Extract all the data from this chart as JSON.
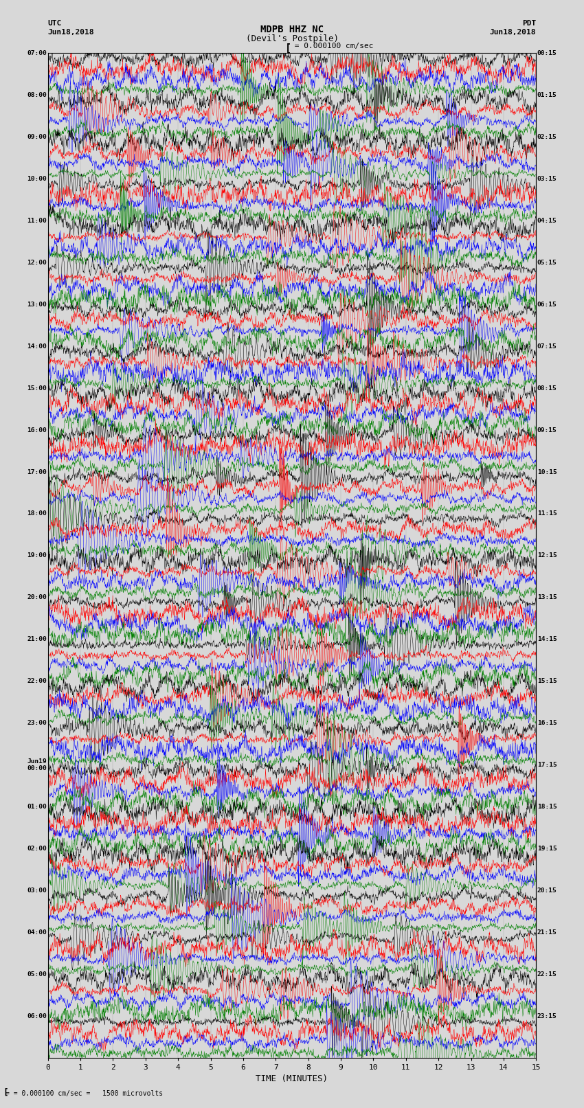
{
  "title_line1": "MDPB HHZ NC",
  "title_line2": "(Devil's Postpile)",
  "scale_label": "= 0.000100 cm/sec",
  "bottom_label": "= 0.000100 cm/sec =   1500 microvolts",
  "xlabel": "TIME (MINUTES)",
  "bg_color": "#d8d8d8",
  "trace_colors": [
    "black",
    "red",
    "blue",
    "green"
  ],
  "left_times_major": [
    "07:00",
    "08:00",
    "09:00",
    "10:00",
    "11:00",
    "12:00",
    "13:00",
    "14:00",
    "15:00",
    "16:00",
    "17:00",
    "18:00",
    "19:00",
    "20:00",
    "21:00",
    "22:00",
    "23:00",
    "00:00",
    "01:00",
    "02:00",
    "03:00",
    "04:00",
    "05:00",
    "06:00"
  ],
  "right_times_major": [
    "00:15",
    "01:15",
    "02:15",
    "03:15",
    "04:15",
    "05:15",
    "06:15",
    "07:15",
    "08:15",
    "09:15",
    "10:15",
    "11:15",
    "12:15",
    "13:15",
    "14:15",
    "15:15",
    "16:15",
    "17:15",
    "18:15",
    "19:15",
    "20:15",
    "21:15",
    "22:15",
    "23:15"
  ],
  "jun19_row": 17,
  "n_groups": 24,
  "n_traces_per_group": 4,
  "n_points": 1800,
  "xmin": 0,
  "xmax": 15,
  "seed": 42
}
